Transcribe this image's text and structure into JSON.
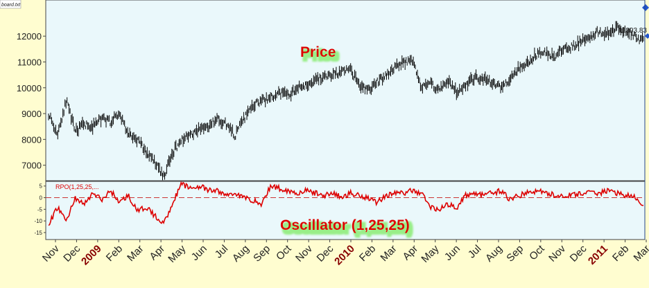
{
  "window": {
    "file_tab": "board.txt",
    "last_value_label": "11893.83"
  },
  "colors": {
    "page_bg": "#fffdd0",
    "panel_bg": "#eaf8fb",
    "price_line": "#000000",
    "oscillator_line": "#dd0000",
    "label_red": "#dd0000",
    "label_glow": "#99ee88",
    "year_label": "#880000",
    "axis_text": "#222222",
    "scroll_handle": "#2255cc"
  },
  "chart_data": [
    {
      "type": "line",
      "title": "Price",
      "yticks": [
        7000,
        8000,
        9000,
        10000,
        11000,
        12000
      ],
      "ylim": [
        6400,
        13400
      ],
      "x_tick_labels": [
        {
          "label": "Nov",
          "year": false
        },
        {
          "label": "Dec",
          "year": false
        },
        {
          "label": "2009",
          "year": true
        },
        {
          "label": "Feb",
          "year": false
        },
        {
          "label": "Mar",
          "year": false
        },
        {
          "label": "Apr",
          "year": false
        },
        {
          "label": "May",
          "year": false
        },
        {
          "label": "Jun",
          "year": false
        },
        {
          "label": "Jul",
          "year": false
        },
        {
          "label": "Aug",
          "year": false
        },
        {
          "label": "Sep",
          "year": false
        },
        {
          "label": "Oct",
          "year": false
        },
        {
          "label": "Nov",
          "year": false
        },
        {
          "label": "Dec",
          "year": false
        },
        {
          "label": "2010",
          "year": true
        },
        {
          "label": "Feb",
          "year": false
        },
        {
          "label": "Mar",
          "year": false
        },
        {
          "label": "Apr",
          "year": false
        },
        {
          "label": "May",
          "year": false
        },
        {
          "label": "Jun",
          "year": false
        },
        {
          "label": "Jul",
          "year": false
        },
        {
          "label": "Aug",
          "year": false
        },
        {
          "label": "Sep",
          "year": false
        },
        {
          "label": "Oct",
          "year": false
        },
        {
          "label": "Nov",
          "year": false
        },
        {
          "label": "Dec",
          "year": false
        },
        {
          "label": "2011",
          "year": true
        },
        {
          "label": "Feb",
          "year": false
        },
        {
          "label": "Mar",
          "year": false
        }
      ],
      "series": [
        {
          "values": [
            9000,
            8200,
            9500,
            8300,
            8600,
            8500,
            8800,
            8700,
            9000,
            8200,
            8000,
            7500,
            7100,
            6550,
            7500,
            8000,
            8200,
            8400,
            8500,
            8800,
            8600,
            8150,
            8800,
            9300,
            9500,
            9600,
            9800,
            9700,
            10000,
            10100,
            10300,
            10400,
            10500,
            10600,
            10700,
            10100,
            9900,
            10200,
            10500,
            10800,
            11000,
            11100,
            10000,
            10200,
            9900,
            10300,
            9800,
            10100,
            10400,
            10300,
            10200,
            10000,
            10400,
            10800,
            11000,
            11300,
            11400,
            11200,
            11500,
            11600,
            11800,
            12000,
            12200,
            12100,
            12300,
            12200,
            12000,
            11800
          ]
        }
      ]
    },
    {
      "type": "line",
      "title": "Oscillator (1,25,25)",
      "legend_text": "RPO(1,25,25,...",
      "yticks": [
        5,
        0,
        -5,
        -10,
        -15
      ],
      "ylim": [
        -18,
        7
      ],
      "series": [
        {
          "values": [
            -12,
            -4,
            -10,
            0,
            -3,
            2,
            -1,
            3,
            -2,
            1,
            -6,
            -4,
            -8,
            -11,
            -2,
            6,
            4,
            5,
            3,
            3,
            1,
            2,
            0,
            -1,
            -3,
            5,
            4,
            3,
            2,
            3,
            2,
            1,
            2,
            0,
            2,
            1,
            0,
            -2,
            1,
            2,
            2,
            3,
            2,
            -4,
            -5,
            -3,
            -4,
            1,
            2,
            1,
            2,
            3,
            -1,
            1,
            2,
            3,
            2,
            1,
            1,
            1,
            2,
            2,
            2,
            3,
            2,
            1,
            0,
            -3
          ]
        }
      ]
    }
  ]
}
